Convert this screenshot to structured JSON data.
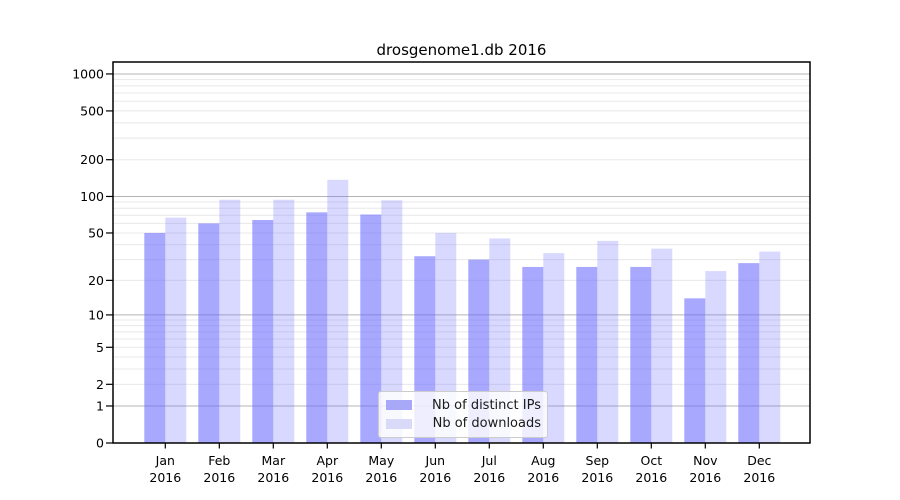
{
  "chart_data": {
    "type": "bar",
    "title": "drosgenome1.db 2016",
    "categories": [
      "Jan",
      "Feb",
      "Mar",
      "Apr",
      "May",
      "Jun",
      "Jul",
      "Aug",
      "Sep",
      "Oct",
      "Nov",
      "Dec"
    ],
    "x_year_label": "2016",
    "series": [
      {
        "name": "Nb of distinct IPs",
        "color": "#6666ff",
        "fill_opacity": 0.57,
        "swatch_color": "#a8a8f8",
        "values": [
          50,
          60,
          64,
          74,
          71,
          32,
          30,
          26,
          26,
          26,
          14,
          28
        ]
      },
      {
        "name": "Nb of downloads",
        "color": "#6666ff",
        "fill_opacity": 0.25,
        "swatch_color": "#d9d9f9",
        "values": [
          67,
          94,
          94,
          137,
          93,
          50,
          45,
          34,
          43,
          37,
          24,
          35
        ]
      }
    ],
    "y_scale": "log1p",
    "y_ticks": [
      0,
      1,
      2,
      5,
      10,
      20,
      50,
      100,
      200,
      500,
      1000
    ],
    "ylim": [
      0,
      1240
    ],
    "grid": {
      "major_color": "#b4b4b4",
      "minor_color": "#e8e8e8",
      "visible": true
    },
    "legend_position": "lower-center",
    "frame_color": "#000000",
    "text_color": "#000000"
  }
}
